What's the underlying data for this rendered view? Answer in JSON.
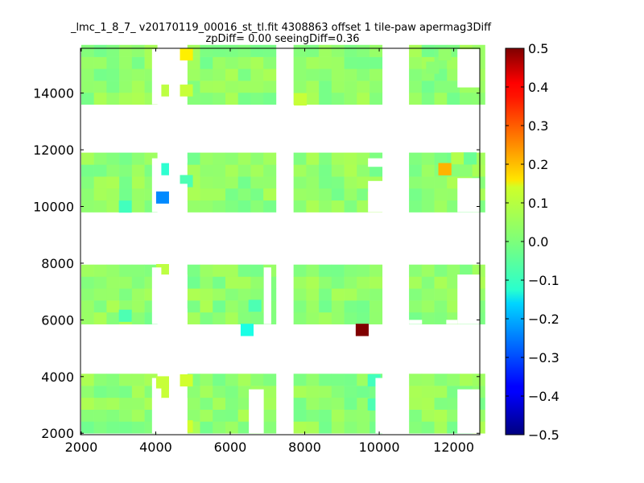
{
  "chart_data": {
    "type": "heatmap",
    "title": "_lmc_1_8_7_ v20170119_00016_st_tl.fit 4308863 offset 1 tile-paw apermag3Diff",
    "subtitle": "zpDiff= 0.00 seeingDiff=0.36",
    "xlabel": "",
    "ylabel": "",
    "xlim": [
      1980,
      12700
    ],
    "ylim": [
      1950,
      15580
    ],
    "x_ticks": [
      "2000",
      "4000",
      "6000",
      "8000",
      "10000",
      "12000"
    ],
    "y_ticks": [
      "2000",
      "4000",
      "6000",
      "8000",
      "10000",
      "12000",
      "14000"
    ],
    "colorbar": {
      "colormap": "jet",
      "range": [
        -0.5,
        0.5
      ],
      "ticks": [
        "0.5",
        "0.4",
        "0.3",
        "0.2",
        "0.1",
        "0.0",
        "−0.1",
        "−0.2",
        "−0.3",
        "−0.4",
        "−0.5"
      ]
    },
    "cell_size": [
      340,
      420
    ],
    "grid": false,
    "detector_blocks_x": [
      [
        2000,
        3900
      ],
      [
        4850,
        6900
      ],
      [
        7700,
        9900
      ],
      [
        10800,
        12700
      ]
    ],
    "detector_blocks_y": [
      [
        2000,
        3950
      ],
      [
        5850,
        7850
      ],
      [
        9800,
        11700
      ],
      [
        13600,
        15550
      ]
    ],
    "highlight_cells": [
      {
        "x": 9540,
        "y": 5650,
        "value": 0.5
      },
      {
        "x": 4820,
        "y": 15370,
        "value": 0.14
      },
      {
        "x": 11760,
        "y": 11320,
        "value": 0.2
      },
      {
        "x": 4180,
        "y": 10320,
        "value": -0.24
      },
      {
        "x": 6450,
        "y": 5650,
        "value": -0.1
      },
      {
        "x": 4180,
        "y": 3800,
        "value": 0.07
      },
      {
        "x": 4180,
        "y": 3400,
        "value": 0.07
      },
      {
        "x": 4820,
        "y": 3870,
        "value": 0.08
      },
      {
        "x": 4820,
        "y": 2250,
        "value": 0.08
      },
      {
        "x": 4180,
        "y": 14100,
        "value": 0.06
      },
      {
        "x": 4820,
        "y": 14100,
        "value": 0.07
      },
      {
        "x": 7880,
        "y": 13780,
        "value": 0.07
      },
      {
        "x": 11430,
        "y": 14900,
        "value": 0.01
      },
      {
        "x": 11760,
        "y": 15370,
        "value": 0.02
      },
      {
        "x": 12100,
        "y": 11700,
        "value": 0.05
      },
      {
        "x": 12440,
        "y": 11700,
        "value": -0.02
      },
      {
        "x": 9860,
        "y": 3870,
        "value": -0.06
      },
      {
        "x": 9860,
        "y": 3020,
        "value": -0.05
      },
      {
        "x": 9860,
        "y": 10320,
        "value": 0.07
      },
      {
        "x": 4180,
        "y": 7760,
        "value": 0.06
      },
      {
        "x": 4180,
        "y": 11320,
        "value": -0.08
      },
      {
        "x": 4820,
        "y": 10900,
        "value": -0.05
      },
      {
        "x": 3180,
        "y": 10000,
        "value": -0.06
      },
      {
        "x": 3180,
        "y": 6150,
        "value": -0.05
      },
      {
        "x": 6660,
        "y": 6500,
        "value": -0.05
      }
    ]
  }
}
